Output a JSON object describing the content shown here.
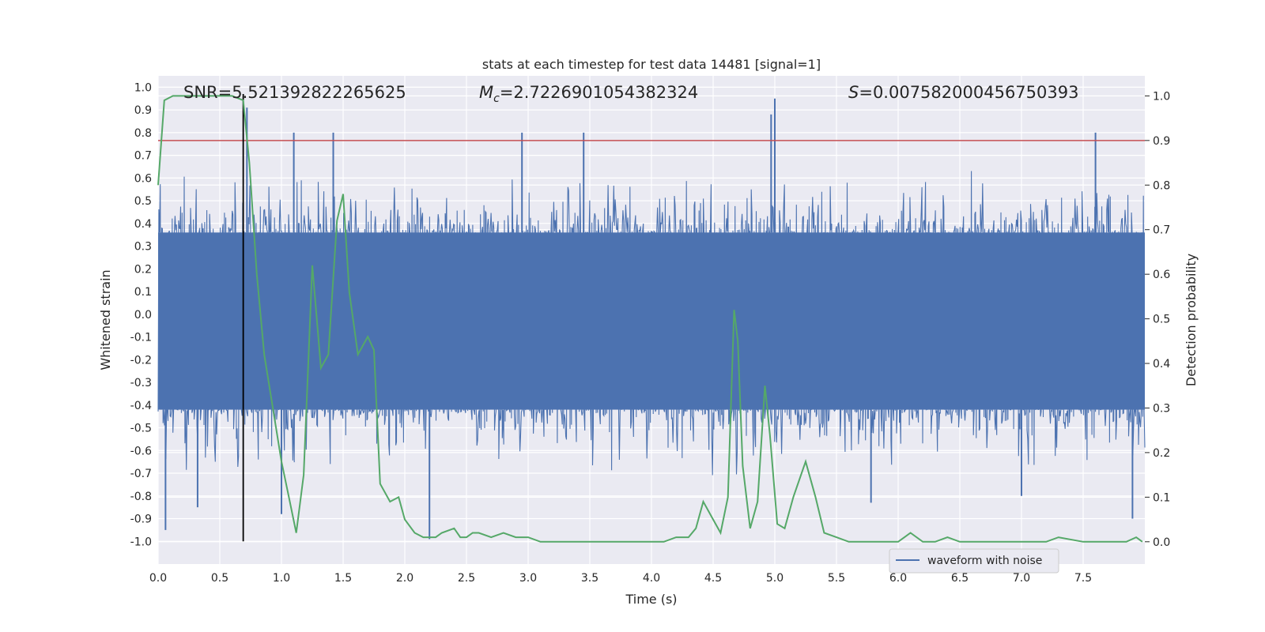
{
  "chart_data": {
    "type": "line",
    "title": "stats at each timestep for test data 14481 [signal=1]",
    "xlabel": "Time (s)",
    "ylabel_left": "Whitened strain",
    "ylabel_right": "Detection probability",
    "xlim": [
      0.0,
      8.0
    ],
    "ylim_left": [
      -1.1,
      1.05
    ],
    "ylim_right": [
      -0.05,
      1.045
    ],
    "x_ticks": [
      "0.0",
      "0.5",
      "1.0",
      "1.5",
      "2.0",
      "2.5",
      "3.0",
      "3.5",
      "4.0",
      "4.5",
      "5.0",
      "5.5",
      "6.0",
      "6.5",
      "7.0",
      "7.5"
    ],
    "y_ticks_left": [
      "1.0",
      "0.9",
      "0.8",
      "0.7",
      "0.6",
      "0.5",
      "0.4",
      "0.3",
      "0.2",
      "0.1",
      "0.0",
      "-0.1",
      "-0.2",
      "-0.3",
      "-0.4",
      "-0.5",
      "-0.6",
      "-0.7",
      "-0.8",
      "-0.9",
      "-1.0"
    ],
    "y_ticks_right": [
      "1.0",
      "0.9",
      "0.8",
      "0.7",
      "0.6",
      "0.5",
      "0.4",
      "0.3",
      "0.2",
      "0.1",
      "0.0"
    ],
    "annotations": {
      "snr": "SNR=5.521392822265625",
      "mc_symbol": "M",
      "mc_sub": "c",
      "mc_value": "=2.7226901054382324",
      "s_symbol": "S",
      "s_value": "=0.007582000456750393"
    },
    "threshold": {
      "value": 0.9,
      "axis": "right",
      "color": "#c44e52"
    },
    "merger_time": 0.69,
    "waveform": {
      "name": "waveform with noise",
      "color": "#4c72b0",
      "n_samples": 1400,
      "band_low": -0.42,
      "band_high": 0.36,
      "notable_peaks": [
        [
          0.72,
          0.91
        ],
        [
          1.1,
          0.8
        ],
        [
          1.42,
          0.8
        ],
        [
          2.95,
          0.8
        ],
        [
          3.45,
          0.8
        ],
        [
          5.0,
          0.95
        ],
        [
          4.97,
          0.88
        ],
        [
          7.6,
          0.8
        ],
        [
          1.0,
          -0.88
        ],
        [
          0.06,
          -0.95
        ],
        [
          2.2,
          -0.99
        ],
        [
          7.9,
          -0.9
        ],
        [
          0.32,
          -0.85
        ],
        [
          5.78,
          -0.83
        ],
        [
          7.0,
          -0.8
        ]
      ]
    },
    "detection_probability": {
      "color": "#55a868",
      "x": [
        0.0,
        0.05,
        0.12,
        0.2,
        0.3,
        0.4,
        0.5,
        0.6,
        0.69,
        0.74,
        0.8,
        0.86,
        0.93,
        1.0,
        1.06,
        1.12,
        1.18,
        1.25,
        1.32,
        1.38,
        1.45,
        1.5,
        1.55,
        1.62,
        1.7,
        1.75,
        1.8,
        1.88,
        1.95,
        2.0,
        2.08,
        2.15,
        2.25,
        2.3,
        2.4,
        2.45,
        2.5,
        2.55,
        2.6,
        2.7,
        2.8,
        2.9,
        3.0,
        3.1,
        3.2,
        3.4,
        3.6,
        3.8,
        4.0,
        4.1,
        4.2,
        4.3,
        4.36,
        4.42,
        4.5,
        4.56,
        4.62,
        4.67,
        4.7,
        4.74,
        4.8,
        4.86,
        4.92,
        4.96,
        5.02,
        5.08,
        5.15,
        5.25,
        5.33,
        5.4,
        5.5,
        5.6,
        5.7,
        5.8,
        6.0,
        6.1,
        6.2,
        6.3,
        6.4,
        6.5,
        6.6,
        6.8,
        7.0,
        7.2,
        7.3,
        7.5,
        7.7,
        7.85,
        7.93,
        7.98
      ],
      "values": [
        0.8,
        0.99,
        1.0,
        1.0,
        1.0,
        1.0,
        1.0,
        1.0,
        0.99,
        0.85,
        0.6,
        0.42,
        0.3,
        0.18,
        0.1,
        0.02,
        0.15,
        0.62,
        0.39,
        0.42,
        0.72,
        0.78,
        0.56,
        0.42,
        0.46,
        0.43,
        0.13,
        0.09,
        0.1,
        0.05,
        0.02,
        0.01,
        0.01,
        0.02,
        0.03,
        0.01,
        0.01,
        0.02,
        0.02,
        0.01,
        0.02,
        0.01,
        0.01,
        0.0,
        0.0,
        0.0,
        0.0,
        0.0,
        0.0,
        0.0,
        0.01,
        0.01,
        0.03,
        0.09,
        0.05,
        0.02,
        0.1,
        0.52,
        0.45,
        0.17,
        0.03,
        0.09,
        0.35,
        0.24,
        0.04,
        0.03,
        0.1,
        0.18,
        0.1,
        0.02,
        0.01,
        0.0,
        0.0,
        0.0,
        0.0,
        0.02,
        0.0,
        0.0,
        0.01,
        0.0,
        0.0,
        0.0,
        0.0,
        0.0,
        0.01,
        0.0,
        0.0,
        0.0,
        0.01,
        0.0
      ]
    }
  }
}
